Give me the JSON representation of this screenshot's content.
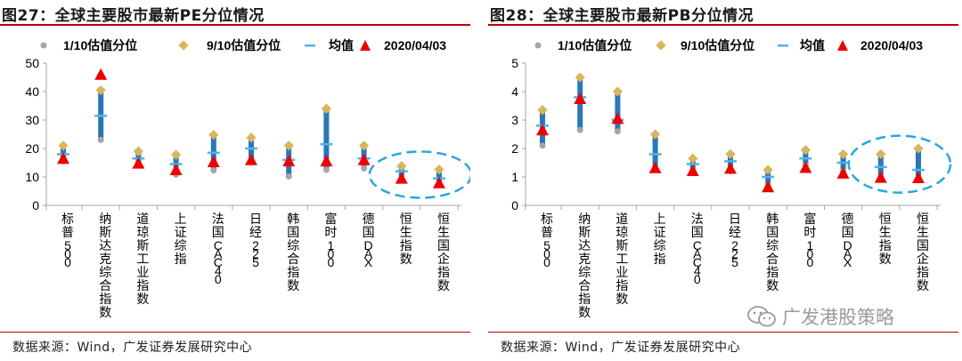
{
  "colors": {
    "range_bar": "#2878b6",
    "min_marker": "#a6a6a6",
    "max_marker": "#d7b65c",
    "mean_marker": "#4fb3e8",
    "current_marker": "#ee0000",
    "highlight_circle": "#29a6e0",
    "title_rule": "#c00000",
    "axis": "#a6a6a6"
  },
  "legend": {
    "min": "1/10估值分位",
    "max": "9/10估值分位",
    "mean": "均值",
    "current": "2020/04/03"
  },
  "watermark": "广发港股策略",
  "chart_data": [
    {
      "type": "range",
      "title": "图27：全球主要股市最新PE分位情况",
      "source": "数据来源：Wind，广发证券发展研究中心",
      "categories": [
        "标普500",
        "纳斯达克综合指数",
        "道琼斯工业指数",
        "上证综指",
        "法国CAC40",
        "日经225",
        "韩国综合指数",
        "富时100",
        "德国DAX",
        "恒生指数",
        "恒生国企指数"
      ],
      "ylim": [
        0,
        50
      ],
      "yticks": [
        "0",
        "10",
        "20",
        "30",
        "40",
        "50"
      ],
      "highlight_categories": [
        "恒生指数",
        "恒生国企指数"
      ],
      "series": [
        {
          "name": "1/10估值分位",
          "values": [
            15.5,
            23,
            14.5,
            10.8,
            12.3,
            15.5,
            10.2,
            12.5,
            13,
            9.5,
            7.8
          ]
        },
        {
          "name": "9/10估值分位",
          "values": [
            21,
            40.5,
            19,
            17.8,
            24.8,
            23.8,
            21,
            34,
            21,
            13.8,
            12.6
          ]
        },
        {
          "name": "均值",
          "values": [
            18,
            31.5,
            16.5,
            14.5,
            18.5,
            20,
            16,
            21.5,
            16.5,
            12,
            9.5
          ]
        },
        {
          "name": "2020/04/03",
          "values": [
            16.5,
            46,
            14.8,
            12.5,
            15.3,
            16,
            15.6,
            15.6,
            16,
            9.5,
            7.9
          ]
        }
      ]
    },
    {
      "type": "range",
      "title": "图28：全球主要股市最新PB分位情况",
      "source": "数据来源：Wind，广发证券发展研究中心",
      "categories": [
        "标普500",
        "纳斯达克综合指数",
        "道琼斯工业指数",
        "上证综指",
        "法国CAC40",
        "日经225",
        "韩国综合指数",
        "富时100",
        "德国DAX",
        "恒生指数",
        "恒生国企指数"
      ],
      "ylim": [
        0,
        5
      ],
      "yticks": [
        "0",
        "1",
        "2",
        "3",
        "4",
        "5"
      ],
      "highlight_categories": [
        "恒生指数",
        "恒生国企指数"
      ],
      "series": [
        {
          "name": "1/10估值分位",
          "values": [
            2.1,
            2.65,
            2.6,
            1.3,
            1.2,
            1.2,
            0.7,
            1.4,
            1.2,
            1.0,
            0.9
          ]
        },
        {
          "name": "9/10估值分位",
          "values": [
            3.35,
            4.5,
            4.0,
            2.5,
            1.65,
            1.8,
            1.25,
            1.95,
            1.8,
            1.8,
            2.0
          ]
        },
        {
          "name": "均值",
          "values": [
            2.8,
            3.8,
            3.0,
            1.8,
            1.45,
            1.55,
            1.0,
            1.65,
            1.5,
            1.35,
            1.25
          ]
        },
        {
          "name": "2020/04/03",
          "values": [
            2.65,
            3.75,
            3.05,
            1.32,
            1.22,
            1.3,
            0.65,
            1.33,
            1.13,
            0.98,
            0.97
          ]
        }
      ]
    }
  ]
}
